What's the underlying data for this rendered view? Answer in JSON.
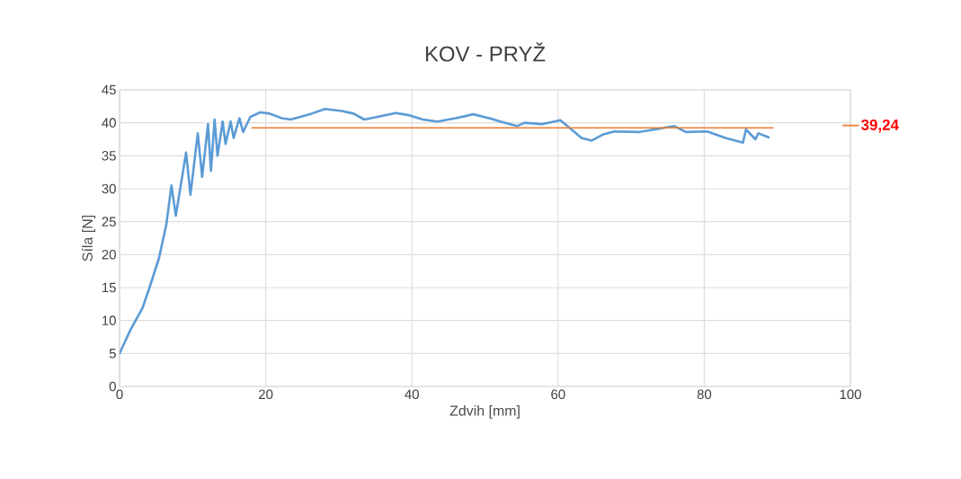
{
  "chart_data": {
    "type": "line",
    "title": "KOV - PRYŽ",
    "xlabel": "Zdvih [mm]",
    "ylabel": "Síla [N]",
    "xlim": [
      0,
      100
    ],
    "xticks": [
      0,
      20,
      40,
      60,
      80,
      100
    ],
    "ylim": [
      0,
      45
    ],
    "yticks": [
      0,
      5,
      10,
      15,
      20,
      25,
      30,
      35,
      40,
      45
    ],
    "grid": true,
    "legend": "right",
    "line_style": "solid",
    "marker": "none",
    "series": [
      {
        "color": "#5b9bd5",
        "x": [
          0,
          1.5,
          3.1,
          4.1,
          5.4,
          6.4,
          7.1,
          7.7,
          9.1,
          9.7,
          10.7,
          11.3,
          12.1,
          12.5,
          13.0,
          13.4,
          14.1,
          14.5,
          15.2,
          15.6,
          16.4,
          16.9,
          17.9,
          19.3,
          20.5,
          22.2,
          23.4,
          26.3,
          28.1,
          30.4,
          32.0,
          33.5,
          35.3,
          37.8,
          39.4,
          41.5,
          43.5,
          46.0,
          48.4,
          50.9,
          52.1,
          54.4,
          55.4,
          57.8,
          59.5,
          60.3,
          61.5,
          63.2,
          64.6,
          66.1,
          67.7,
          71.0,
          73.8,
          75.9,
          77.5,
          80.4,
          82.9,
          85.3,
          85.7,
          87.0,
          87.4,
          88.8
        ],
        "values": [
          5.0,
          8.6,
          11.8,
          15,
          19.5,
          24.6,
          30.5,
          25.9,
          35.5,
          29.1,
          38.4,
          31.8,
          39.8,
          32.7,
          40.5,
          35.0,
          40.2,
          36.8,
          40.2,
          37.7,
          40.7,
          38.6,
          40.9,
          41.6,
          41.4,
          40.7,
          40.5,
          41.4,
          42.1,
          41.8,
          41.4,
          40.5,
          40.9,
          41.5,
          41.2,
          40.5,
          40.2,
          40.7,
          41.3,
          40.6,
          40.2,
          39.5,
          40.0,
          39.8,
          40.2,
          40.4,
          39.3,
          37.7,
          37.3,
          38.2,
          38.7,
          38.6,
          39.1,
          39.5,
          38.6,
          38.7,
          37.7,
          37.0,
          39.0,
          37.5,
          38.4,
          37.8
        ]
      },
      {
        "name": "39,24",
        "color": "#ed7d31",
        "x": [
          18.1,
          89.4
        ],
        "values": [
          39.24,
          39.24
        ]
      }
    ]
  }
}
